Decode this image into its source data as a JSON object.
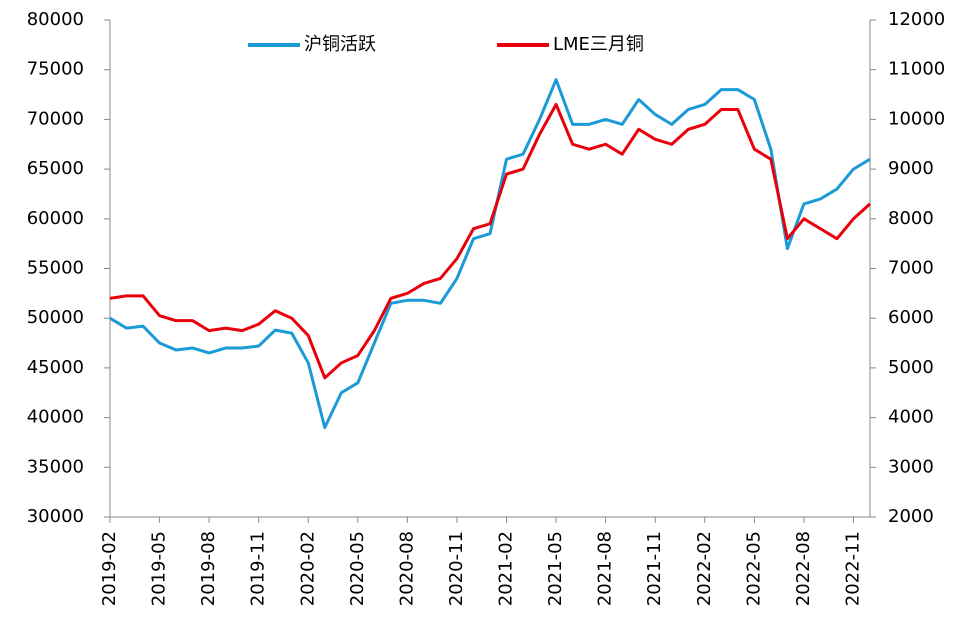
{
  "chart_data": {
    "type": "line",
    "x": [
      "2019-02",
      "2019-03",
      "2019-04",
      "2019-05",
      "2019-06",
      "2019-07",
      "2019-08",
      "2019-09",
      "2019-10",
      "2019-11",
      "2019-12",
      "2020-01",
      "2020-02",
      "2020-03",
      "2020-04",
      "2020-05",
      "2020-06",
      "2020-07",
      "2020-08",
      "2020-09",
      "2020-10",
      "2020-11",
      "2020-12",
      "2021-01",
      "2021-02",
      "2021-03",
      "2021-04",
      "2021-05",
      "2021-06",
      "2021-07",
      "2021-08",
      "2021-09",
      "2021-10",
      "2021-11",
      "2021-12",
      "2022-01",
      "2022-02",
      "2022-03",
      "2022-04",
      "2022-05",
      "2022-06",
      "2022-07",
      "2022-08",
      "2022-09",
      "2022-10",
      "2022-11",
      "2022-12"
    ],
    "series": [
      {
        "name": "沪铜活跃",
        "color": "#1a9ad6",
        "axis": "y",
        "values": [
          50000,
          49000,
          49200,
          47500,
          46800,
          47000,
          46500,
          47000,
          47000,
          47200,
          48800,
          48500,
          45500,
          39000,
          42500,
          43500,
          47500,
          51500,
          51800,
          51800,
          51500,
          54000,
          58000,
          58500,
          66000,
          66500,
          70000,
          74000,
          69500,
          69500,
          70000,
          69500,
          72000,
          70500,
          69500,
          71000,
          71500,
          73000,
          73000,
          72000,
          67000,
          57000,
          61500,
          62000,
          63000,
          65000,
          66000
        ]
      },
      {
        "name": "LME三月铜",
        "color": "#e8000b",
        "axis": "y2",
        "values": [
          6400,
          6450,
          6450,
          6050,
          5950,
          5950,
          5750,
          5800,
          5750,
          5880,
          6150,
          6000,
          5650,
          4800,
          5100,
          5250,
          5750,
          6400,
          6500,
          6700,
          6800,
          7200,
          7800,
          7900,
          8900,
          9000,
          9700,
          10300,
          9500,
          9400,
          9500,
          9300,
          9800,
          9600,
          9500,
          9800,
          9900,
          10200,
          10200,
          9400,
          9200,
          7600,
          8000,
          7800,
          7600,
          8000,
          8300
        ]
      }
    ],
    "xlim": [
      "2019-02",
      "2022-12"
    ],
    "xticks": [
      "2019-02",
      "2019-05",
      "2019-08",
      "2019-11",
      "2020-02",
      "2020-05",
      "2020-08",
      "2020-11",
      "2021-02",
      "2021-05",
      "2021-08",
      "2021-11",
      "2022-02",
      "2022-05",
      "2022-08",
      "2022-11"
    ],
    "ylim": [
      30000,
      80000
    ],
    "yticks": [
      30000,
      35000,
      40000,
      45000,
      50000,
      55000,
      60000,
      65000,
      70000,
      75000,
      80000
    ],
    "y2lim": [
      2000,
      12000
    ],
    "y2ticks": [
      2000,
      3000,
      4000,
      5000,
      6000,
      7000,
      8000,
      9000,
      10000,
      11000,
      12000
    ],
    "legend": "top"
  }
}
